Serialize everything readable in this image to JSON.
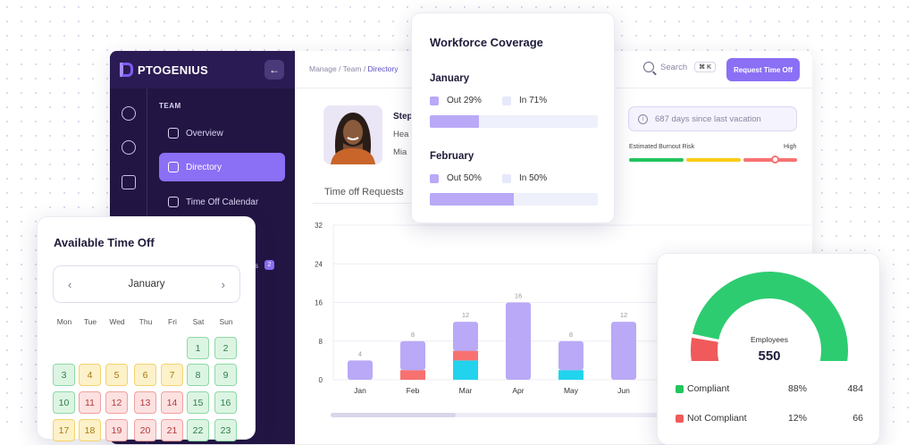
{
  "brand": {
    "name_bold": "PTO",
    "name_rest": "GENIUS"
  },
  "sidebar": {
    "section": "TEAM",
    "items": [
      {
        "label": "Overview"
      },
      {
        "label": "Directory"
      },
      {
        "label": "Time Off Calendar"
      }
    ],
    "partial_text": "s",
    "badge_count": "2"
  },
  "breadcrumb": {
    "a": "Manage",
    "b": "Team",
    "c": "Directory",
    "sep": " / "
  },
  "search": {
    "label": "Search",
    "shortcut": "⌘ K"
  },
  "header": {
    "request_btn": "Request Time Off"
  },
  "employee": {
    "name": "Step",
    "role": "Hea",
    "location": "Mia"
  },
  "vacation": {
    "text": "687 days since last vacation",
    "icon": "info-icon"
  },
  "burnout": {
    "label": "Estimated Burnout Risk",
    "high": "High",
    "colors": [
      "#22c55e",
      "#facc15",
      "#f87171"
    ],
    "level": 0.92
  },
  "time_off_requests": {
    "title": "Time off Requests"
  },
  "chart_data": {
    "type": "bar",
    "stacked": true,
    "categories": [
      "Jan",
      "Feb",
      "Mar",
      "Apr",
      "May",
      "Jun"
    ],
    "yticks": [
      0,
      8,
      16,
      24,
      32
    ],
    "ylim": [
      0,
      32
    ],
    "totals": [
      "4",
      "8",
      "12",
      "16",
      "8",
      "12"
    ],
    "series": [
      {
        "color": "#22d3ee",
        "values": [
          0,
          0,
          4,
          0,
          2,
          0
        ]
      },
      {
        "color": "#f87171",
        "values": [
          0,
          2,
          2,
          0,
          0,
          0
        ]
      },
      {
        "color": "#b9a9f7",
        "values": [
          4,
          6,
          6,
          16,
          6,
          12
        ]
      }
    ]
  },
  "workforce": {
    "title": "Workforce Coverage",
    "months": [
      {
        "name": "January",
        "out": "Out 29%",
        "in": "In 71%",
        "out_frac": 0.29
      },
      {
        "name": "February",
        "out": "Out 50%",
        "in": "In 50%",
        "out_frac": 0.5
      }
    ]
  },
  "timeoff": {
    "title": "Available Time Off",
    "month": "January",
    "dow": [
      "Mon",
      "Tue",
      "Wed",
      "Thu",
      "Fri",
      "Sat",
      "Sun"
    ],
    "days": [
      {
        "d": "1",
        "s": "g",
        "c": 5,
        "r": 0
      },
      {
        "d": "2",
        "s": "g",
        "c": 6,
        "r": 0
      },
      {
        "d": "3",
        "s": "g",
        "c": 0,
        "r": 1
      },
      {
        "d": "4",
        "s": "y",
        "c": 1,
        "r": 1
      },
      {
        "d": "5",
        "s": "y",
        "c": 2,
        "r": 1
      },
      {
        "d": "6",
        "s": "y",
        "c": 3,
        "r": 1
      },
      {
        "d": "7",
        "s": "y",
        "c": 4,
        "r": 1
      },
      {
        "d": "8",
        "s": "g",
        "c": 5,
        "r": 1
      },
      {
        "d": "9",
        "s": "g",
        "c": 6,
        "r": 1
      },
      {
        "d": "10",
        "s": "g",
        "c": 0,
        "r": 2
      },
      {
        "d": "11",
        "s": "r",
        "c": 1,
        "r": 2
      },
      {
        "d": "12",
        "s": "r",
        "c": 2,
        "r": 2
      },
      {
        "d": "13",
        "s": "r",
        "c": 3,
        "r": 2
      },
      {
        "d": "14",
        "s": "r",
        "c": 4,
        "r": 2
      },
      {
        "d": "15",
        "s": "g",
        "c": 5,
        "r": 2
      },
      {
        "d": "16",
        "s": "g",
        "c": 6,
        "r": 2
      },
      {
        "d": "17",
        "s": "y",
        "c": 0,
        "r": 3
      },
      {
        "d": "18",
        "s": "y",
        "c": 1,
        "r": 3
      },
      {
        "d": "19",
        "s": "r",
        "c": 2,
        "r": 3
      },
      {
        "d": "20",
        "s": "r",
        "c": 3,
        "r": 3
      },
      {
        "d": "21",
        "s": "r",
        "c": 4,
        "r": 3
      },
      {
        "d": "22",
        "s": "g",
        "c": 5,
        "r": 3
      },
      {
        "d": "23",
        "s": "g",
        "c": 6,
        "r": 3
      }
    ]
  },
  "compliance": {
    "label": "Employees",
    "total": "550",
    "rows": [
      {
        "name": "Compliant",
        "pct": "88%",
        "count": "484",
        "color": "#22c55e"
      },
      {
        "name": "Not Compliant",
        "pct": "12%",
        "count": "66",
        "color": "#f05a5a"
      }
    ],
    "fractions": [
      0.12,
      0.88
    ]
  }
}
